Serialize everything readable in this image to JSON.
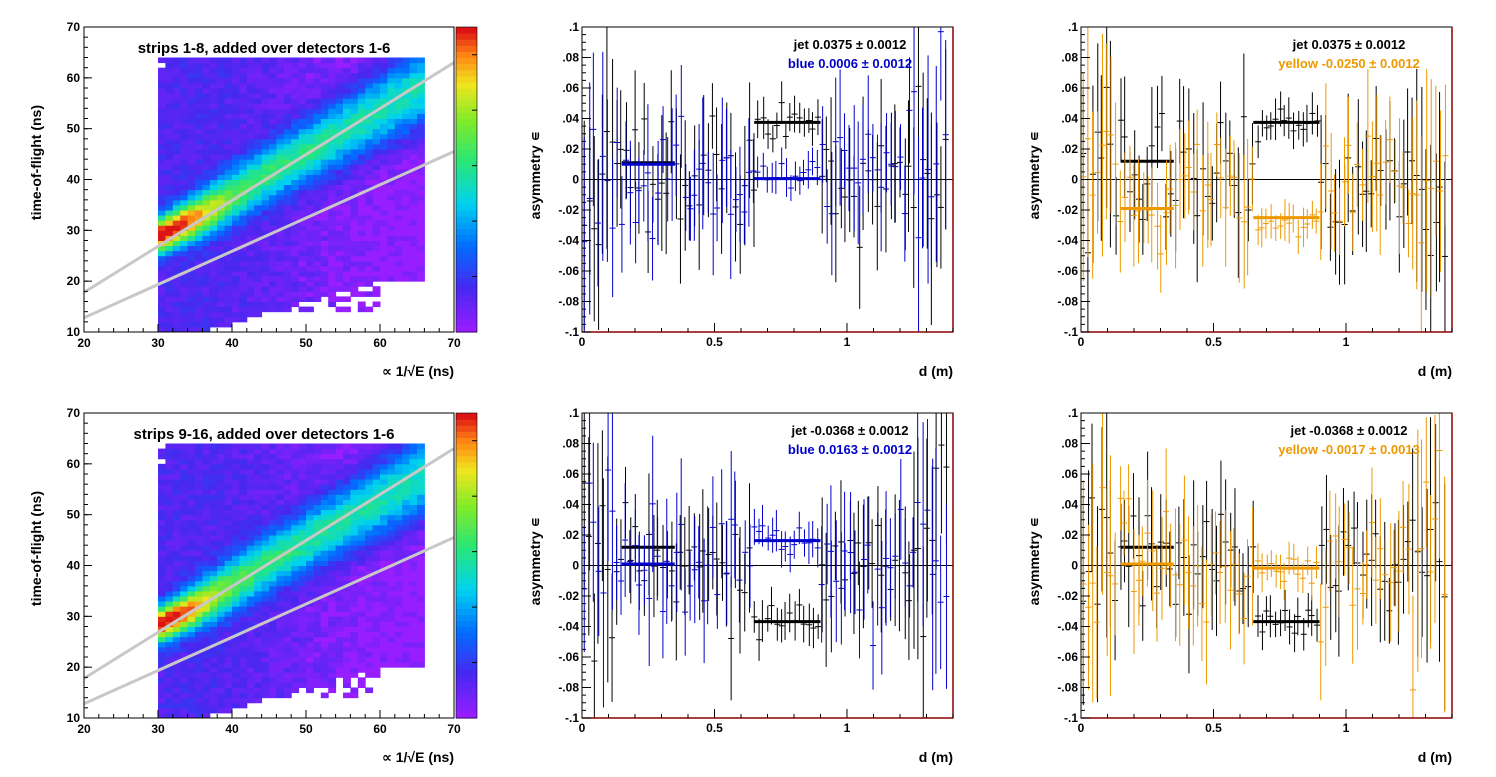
{
  "chart_data": [
    {
      "id": "tof1",
      "type": "heatmap",
      "title": "strips 1-8, added over detectors 1-6",
      "xlabel": "∝ 1/√E (ns)",
      "ylabel": "time-of-flight (ns)",
      "xlim": [
        20,
        70
      ],
      "ylim": [
        10,
        70
      ],
      "xticks": [
        20,
        30,
        40,
        50,
        60,
        70
      ],
      "yticks": [
        10,
        20,
        30,
        40,
        50,
        60,
        70
      ],
      "colorbar": {
        "min": 0,
        "max": 5.5,
        "ticks": [
          1,
          2,
          3,
          4,
          5
        ]
      },
      "band": {
        "intercept": 0.8,
        "slope": 0.44,
        "peak_x": 34,
        "peak_y": 27
      },
      "cuts": [
        {
          "x1": 20,
          "y1": 17.8,
          "x2": 70,
          "y2": 63
        },
        {
          "x1": 20,
          "y1": 12.8,
          "x2": 70,
          "y2": 45.5
        }
      ],
      "filled_region": {
        "x_from": 30,
        "x_to": 66,
        "y_from": 10,
        "y_to": 64
      }
    },
    {
      "id": "asym_blue1",
      "type": "scatter",
      "xlabel": "d (m)",
      "ylabel": "asymmetry ∊",
      "xlim": [
        0,
        1.4
      ],
      "ylim": [
        -0.1,
        0.1
      ],
      "xticks": [
        0,
        0.5,
        1
      ],
      "yticks": [
        -0.1,
        -0.08,
        -0.06,
        -0.04,
        -0.02,
        0,
        0.02,
        0.04,
        0.06,
        0.08,
        0.1
      ],
      "legend": [
        {
          "text": "jet  0.0375 ± 0.0012",
          "color": "#000000"
        },
        {
          "text": "blue  0.0006 ± 0.0012",
          "color": "#0000cc"
        }
      ],
      "series": [
        {
          "name": "jet",
          "color": "#000000",
          "seed": 11,
          "center": 0.0375,
          "spread": 0.03,
          "fits": [
            {
              "x": [
                0.15,
                0.35
              ],
              "y": 0.011
            },
            {
              "x": [
                0.65,
                0.9
              ],
              "y": 0.0375
            }
          ]
        },
        {
          "name": "blue",
          "color": "#0000cc",
          "seed": 23,
          "center": 0.0006,
          "spread": 0.03,
          "fits": [
            {
              "x": [
                0.15,
                0.35
              ],
              "y": 0.01
            },
            {
              "x": [
                0.65,
                0.9
              ],
              "y": 0.0006
            }
          ]
        }
      ]
    },
    {
      "id": "asym_yellow1",
      "type": "scatter",
      "xlabel": "d (m)",
      "ylabel": "asymmetry ∊",
      "xlim": [
        0,
        1.4
      ],
      "ylim": [
        -0.1,
        0.1
      ],
      "xticks": [
        0,
        0.5,
        1
      ],
      "yticks": [
        -0.1,
        -0.08,
        -0.06,
        -0.04,
        -0.02,
        0,
        0.02,
        0.04,
        0.06,
        0.08,
        0.1
      ],
      "legend": [
        {
          "text": "jet  0.0375 ± 0.0012",
          "color": "#000000"
        },
        {
          "text": "yellow -0.0250 ± 0.0012",
          "color": "#ee9900"
        }
      ],
      "series": [
        {
          "name": "jet",
          "color": "#000000",
          "seed": 37,
          "center": 0.0375,
          "spread": 0.03,
          "fits": [
            {
              "x": [
                0.15,
                0.35
              ],
              "y": 0.012
            },
            {
              "x": [
                0.65,
                0.9
              ],
              "y": 0.0375
            }
          ]
        },
        {
          "name": "yellow",
          "color": "#ee9900",
          "seed": 41,
          "center": -0.025,
          "spread": 0.03,
          "fits": [
            {
              "x": [
                0.15,
                0.35
              ],
              "y": -0.019
            },
            {
              "x": [
                0.65,
                0.9
              ],
              "y": -0.025
            }
          ]
        }
      ]
    },
    {
      "id": "tof2",
      "type": "heatmap",
      "title": "strips 9-16, added over detectors 1-6",
      "xlabel": "∝ 1/√E (ns)",
      "ylabel": "time-of-flight (ns)",
      "xlim": [
        20,
        70
      ],
      "ylim": [
        10,
        70
      ],
      "xticks": [
        20,
        30,
        40,
        50,
        60,
        70
      ],
      "yticks": [
        10,
        20,
        30,
        40,
        50,
        60,
        70
      ],
      "colorbar": {
        "min": 0,
        "max": 5.5,
        "ticks": [
          1,
          2,
          3,
          4,
          5
        ]
      },
      "band": {
        "intercept": 0.2,
        "slope": 0.44,
        "peak_x": 34,
        "peak_y": 26
      },
      "cuts": [
        {
          "x1": 20,
          "y1": 17.8,
          "x2": 70,
          "y2": 63
        },
        {
          "x1": 20,
          "y1": 12.8,
          "x2": 70,
          "y2": 45.5
        }
      ],
      "filled_region": {
        "x_from": 30,
        "x_to": 66,
        "y_from": 10,
        "y_to": 64
      }
    },
    {
      "id": "asym_blue2",
      "type": "scatter",
      "xlabel": "d (m)",
      "ylabel": "asymmetry ∊",
      "xlim": [
        0,
        1.4
      ],
      "ylim": [
        -0.1,
        0.1
      ],
      "xticks": [
        0,
        0.5,
        1
      ],
      "yticks": [
        -0.1,
        -0.08,
        -0.06,
        -0.04,
        -0.02,
        0,
        0.02,
        0.04,
        0.06,
        0.08,
        0.1
      ],
      "legend": [
        {
          "text": "jet -0.0368 ± 0.0012",
          "color": "#000000"
        },
        {
          "text": "blue  0.0163 ± 0.0012",
          "color": "#0000cc"
        }
      ],
      "series": [
        {
          "name": "jet",
          "color": "#000000",
          "seed": 53,
          "center": -0.0368,
          "spread": 0.03,
          "fits": [
            {
              "x": [
                0.15,
                0.35
              ],
              "y": 0.012
            },
            {
              "x": [
                0.65,
                0.9
              ],
              "y": -0.0368
            }
          ]
        },
        {
          "name": "blue",
          "color": "#0000cc",
          "seed": 67,
          "center": 0.0163,
          "spread": 0.03,
          "fits": [
            {
              "x": [
                0.15,
                0.35
              ],
              "y": 0.001
            },
            {
              "x": [
                0.65,
                0.9
              ],
              "y": 0.0163
            }
          ]
        }
      ]
    },
    {
      "id": "asym_yellow2",
      "type": "scatter",
      "xlabel": "d (m)",
      "ylabel": "asymmetry ∊",
      "xlim": [
        0,
        1.4
      ],
      "ylim": [
        -0.1,
        0.1
      ],
      "xticks": [
        0,
        0.5,
        1
      ],
      "yticks": [
        -0.1,
        -0.08,
        -0.06,
        -0.04,
        -0.02,
        0,
        0.02,
        0.04,
        0.06,
        0.08,
        0.1
      ],
      "legend": [
        {
          "text": "jet -0.0368 ± 0.0012",
          "color": "#000000"
        },
        {
          "text": "yellow -0.0017 ± 0.0013",
          "color": "#ee9900"
        }
      ],
      "series": [
        {
          "name": "jet",
          "color": "#000000",
          "seed": 71,
          "center": -0.0368,
          "spread": 0.03,
          "fits": [
            {
              "x": [
                0.15,
                0.35
              ],
              "y": 0.012
            },
            {
              "x": [
                0.65,
                0.9
              ],
              "y": -0.0368
            }
          ]
        },
        {
          "name": "yellow",
          "color": "#ee9900",
          "seed": 83,
          "center": -0.0017,
          "spread": 0.03,
          "fits": [
            {
              "x": [
                0.15,
                0.35
              ],
              "y": 0.001
            },
            {
              "x": [
                0.65,
                0.9
              ],
              "y": -0.0017
            }
          ]
        }
      ]
    }
  ]
}
